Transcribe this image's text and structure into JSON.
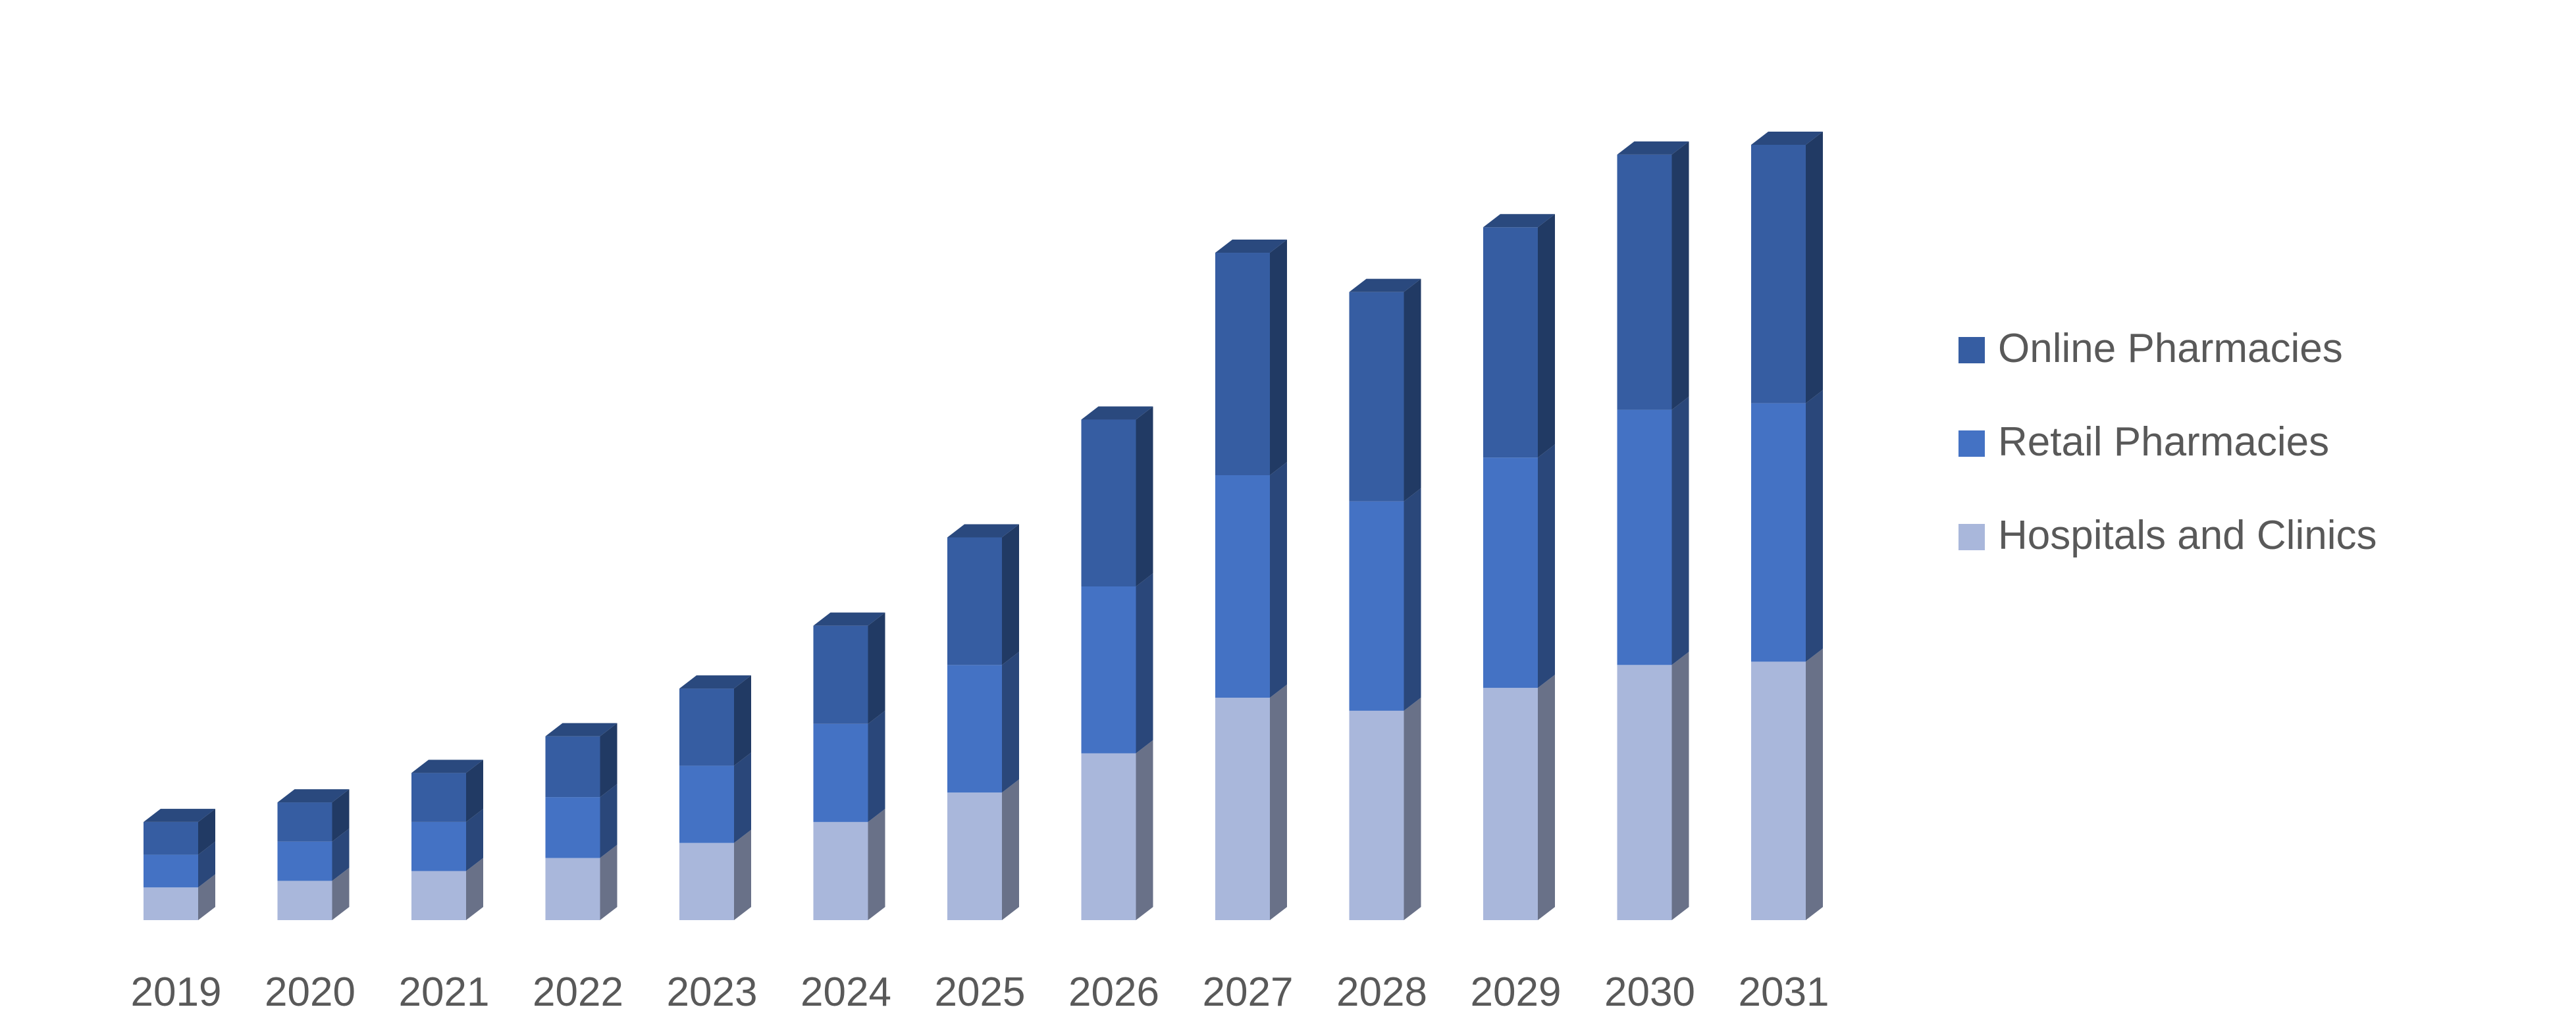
{
  "chart_data": {
    "type": "bar",
    "stacked": true,
    "style_3d": true,
    "title": "",
    "xlabel": "",
    "ylabel": "",
    "grid": false,
    "y_axis_visible": false,
    "legend_position": "right",
    "categories": [
      "2019",
      "2020",
      "2021",
      "2022",
      "2023",
      "2024",
      "2025",
      "2026",
      "2027",
      "2028",
      "2029",
      "2030",
      "2031"
    ],
    "series": [
      {
        "name": "Hospitals and Clinics",
        "color": "#A9B7DB",
        "values": [
          0.5,
          0.6,
          0.75,
          0.95,
          1.18,
          1.5,
          1.95,
          2.55,
          3.4,
          3.2,
          3.55,
          3.9,
          3.95
        ]
      },
      {
        "name": "Retail Pharmacies",
        "color": "#4472C4",
        "values": [
          0.5,
          0.6,
          0.75,
          0.93,
          1.18,
          1.5,
          1.95,
          2.55,
          3.4,
          3.2,
          3.52,
          3.9,
          3.95
        ]
      },
      {
        "name": "Online Pharmacies",
        "color": "#365DA2",
        "values": [
          0.5,
          0.6,
          0.75,
          0.93,
          1.18,
          1.5,
          1.95,
          2.55,
          3.4,
          3.2,
          3.52,
          3.9,
          3.95
        ]
      }
    ],
    "ylim": [
      0,
      11.85
    ]
  }
}
